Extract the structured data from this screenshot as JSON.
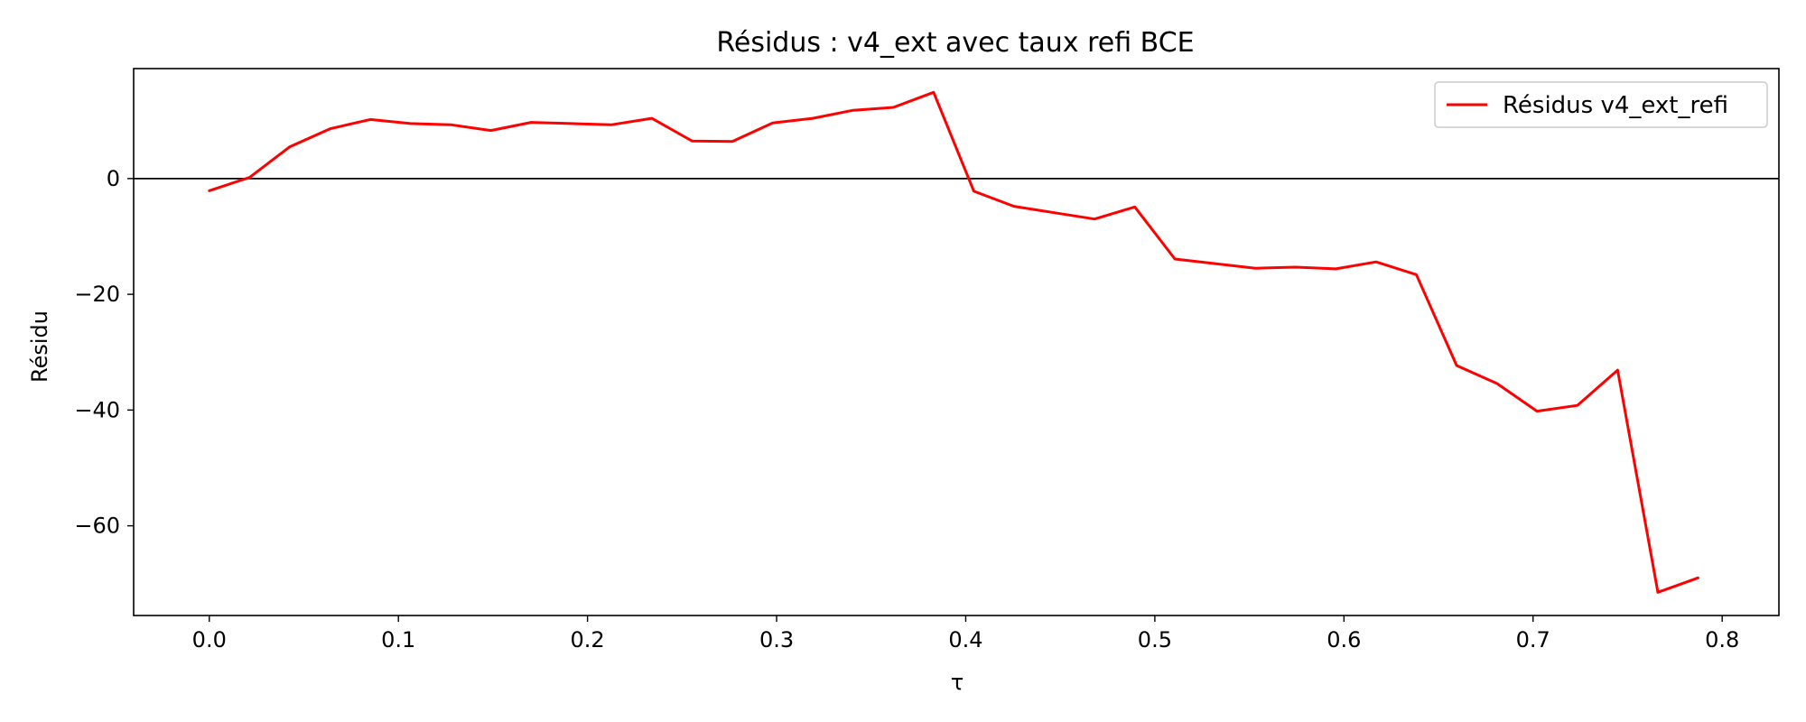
{
  "chart_data": {
    "type": "line",
    "title": "Résidus : v4_ext avec taux refi BCE",
    "xlabel": "τ",
    "ylabel": "Résidu",
    "xlim": [
      -0.04,
      0.83
    ],
    "ylim": [
      -75.5,
      19
    ],
    "xticks": [
      0.0,
      0.1,
      0.2,
      0.3,
      0.4,
      0.5,
      0.6,
      0.7,
      0.8
    ],
    "xtick_labels": [
      "0.0",
      "0.1",
      "0.2",
      "0.3",
      "0.4",
      "0.5",
      "0.6",
      "0.7",
      "0.8"
    ],
    "yticks": [
      0,
      -20,
      -40,
      -60
    ],
    "ytick_labels": [
      "0",
      "−20",
      "−40",
      "−60"
    ],
    "grid": false,
    "hline": 0,
    "legend_position": "upper right",
    "series": [
      {
        "name": "Résidus v4_ext_refi",
        "color": "#ff0000",
        "x": [
          0.0,
          0.0213,
          0.0426,
          0.0638,
          0.0851,
          0.1064,
          0.1277,
          0.1489,
          0.1702,
          0.1915,
          0.2128,
          0.234,
          0.2553,
          0.2766,
          0.2979,
          0.3191,
          0.3404,
          0.3617,
          0.383,
          0.4043,
          0.4255,
          0.4468,
          0.4681,
          0.4894,
          0.5106,
          0.5319,
          0.5532,
          0.5745,
          0.5957,
          0.617,
          0.6383,
          0.6596,
          0.6809,
          0.7021,
          0.7234,
          0.7447,
          0.766,
          0.7872
        ],
        "y": [
          -2.1,
          0.2,
          5.5,
          8.6,
          10.2,
          9.5,
          9.3,
          8.3,
          9.7,
          9.5,
          9.3,
          10.4,
          6.5,
          6.4,
          9.6,
          10.4,
          11.8,
          12.3,
          14.9,
          -2.2,
          -4.8,
          -5.9,
          -7.0,
          -4.9,
          -13.9,
          -14.7,
          -15.5,
          -15.3,
          -15.6,
          -14.4,
          -16.6,
          -32.3,
          -35.4,
          -40.2,
          -39.2,
          -33.1,
          -71.5,
          -69.0
        ]
      }
    ]
  }
}
